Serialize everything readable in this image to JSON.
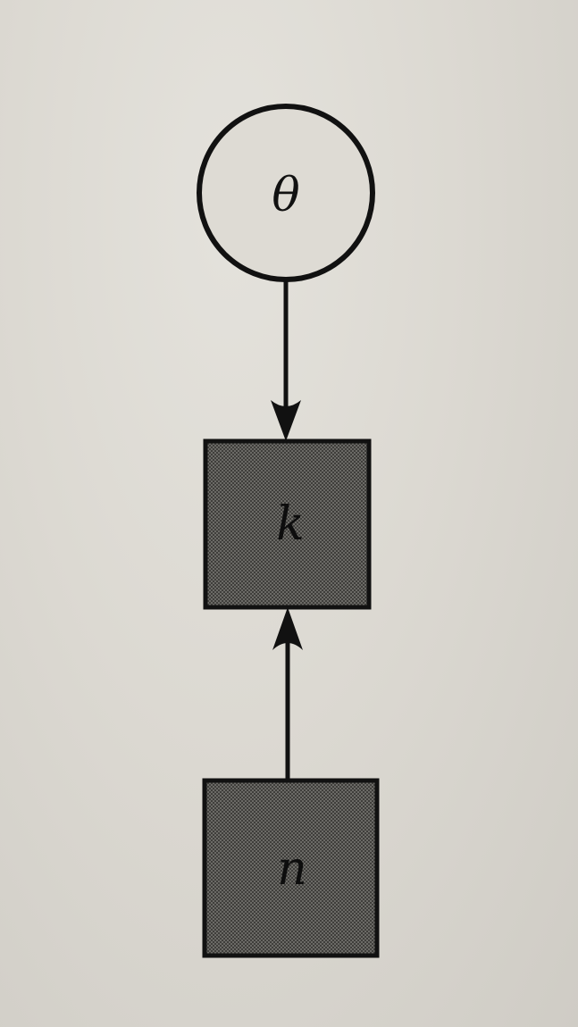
{
  "diagram": {
    "type": "graphical-model",
    "nodes": [
      {
        "id": "theta",
        "label": "θ",
        "shape": "circle",
        "observed": false
      },
      {
        "id": "k",
        "label": "k",
        "shape": "square",
        "observed": true
      },
      {
        "id": "n",
        "label": "n",
        "shape": "square",
        "observed": true
      }
    ],
    "edges": [
      {
        "from": "theta",
        "to": "k"
      },
      {
        "from": "n",
        "to": "k"
      }
    ],
    "colors": {
      "ink": "#111111",
      "shaded_fill": "#5a5956",
      "circle_fill": "#dedbd4"
    }
  }
}
